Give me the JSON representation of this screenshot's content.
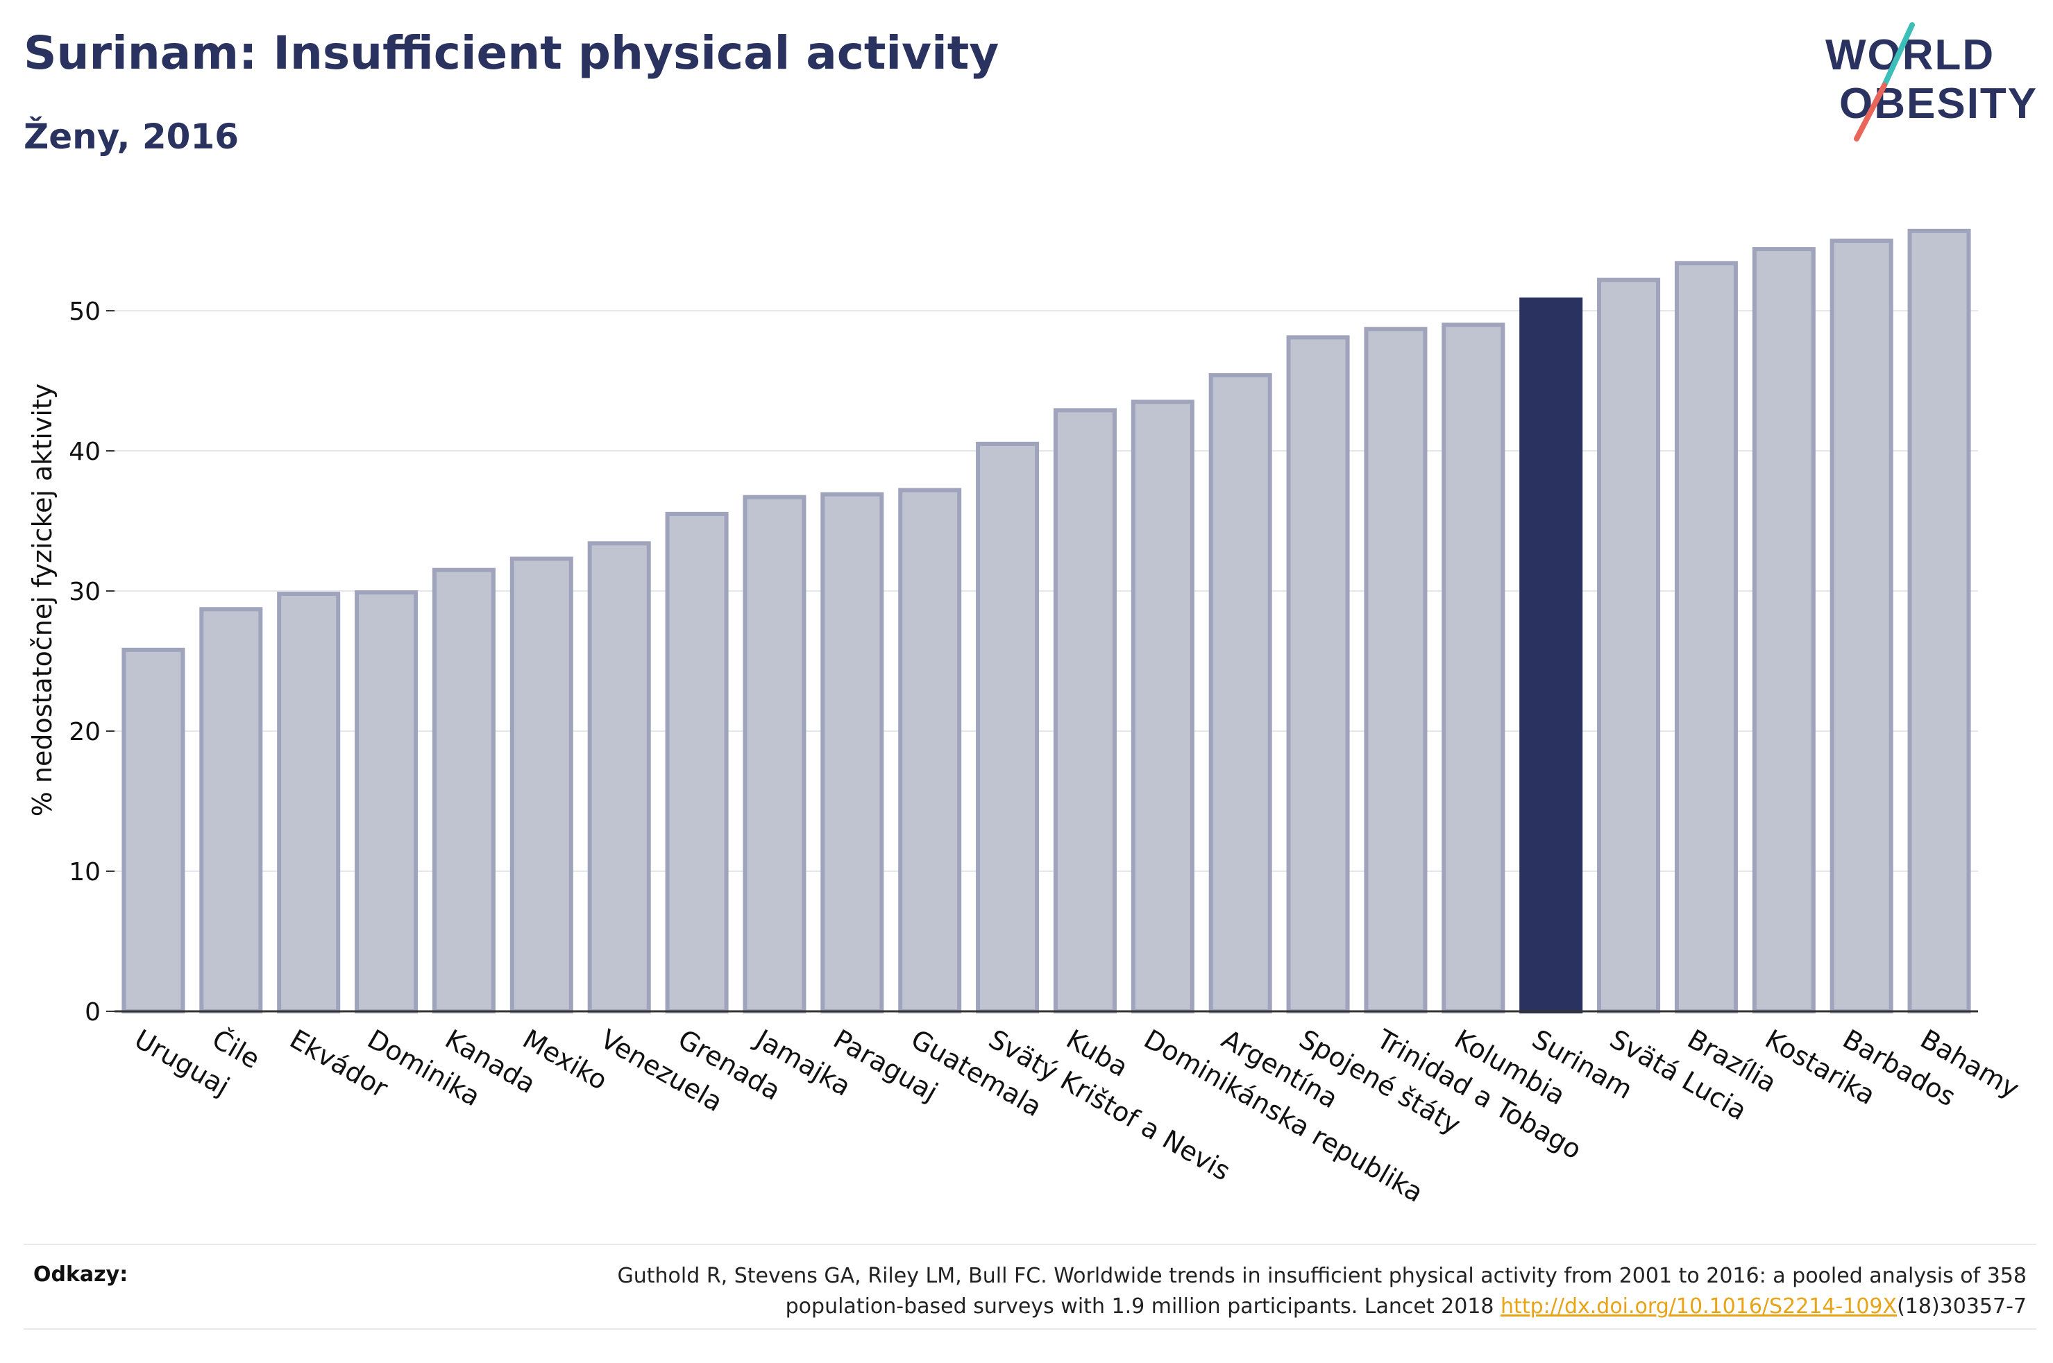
{
  "header": {
    "title": "Surinam: Insufficient physical activity",
    "subtitle": "Ženy, 2016"
  },
  "logo": {
    "line1": "WORLD",
    "line2": "OBESITY"
  },
  "colors": {
    "highlight": "#2a3360",
    "bar": "#c0c3d0",
    "bar_outline": "#9fa3bb",
    "text": "#2a3360",
    "link": "#e8a317"
  },
  "chart_data": {
    "type": "bar",
    "ylabel": "% nedostatočnej fyzickej aktivity",
    "xlabel": "",
    "ylim": [
      0,
      57
    ],
    "yticks": [
      0,
      10,
      20,
      30,
      40,
      50
    ],
    "grid": true,
    "highlight": "Surinam",
    "categories": [
      "Uruguaj",
      "Čile",
      "Ekvádor",
      "Dominika",
      "Kanada",
      "Mexiko",
      "Venezuela",
      "Grenada",
      "Jamajka",
      "Paraguaj",
      "Guatemala",
      "Svätý Krištof a Nevis",
      "Kuba",
      "Dominikánska republika",
      "Argentína",
      "Spojené štáty",
      "Trinidad a Tobago",
      "Kolumbia",
      "Surinam",
      "Svätá Lucia",
      "Brazília",
      "Kostarika",
      "Barbados",
      "Bahamy"
    ],
    "values": [
      25.8,
      28.7,
      29.8,
      29.9,
      31.5,
      32.3,
      33.4,
      35.5,
      36.7,
      36.9,
      37.2,
      40.5,
      42.9,
      43.5,
      45.4,
      48.1,
      48.7,
      49.0,
      50.8,
      52.2,
      53.4,
      54.4,
      55.0,
      55.7
    ]
  },
  "references": {
    "label": "Odkazy:",
    "text_line1": "Guthold R, Stevens GA, Riley LM, Bull FC. Worldwide trends in insufficient physical activity from 2001 to 2016: a pooled analysis of 358",
    "text_line2_before": "population-based surveys with 1.9 million participants. Lancet 2018 ",
    "link": "http://dx.doi.org/10.1016/S2214-109X",
    "text_after": "(18)30357-7"
  }
}
